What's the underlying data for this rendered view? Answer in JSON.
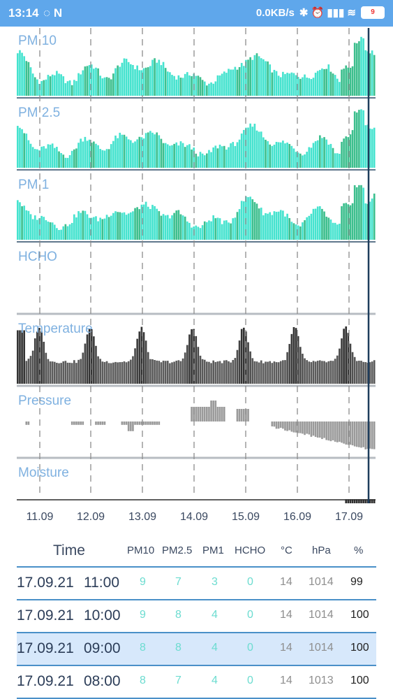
{
  "status_bar": {
    "time": "13:14",
    "left_icons": "◌ N",
    "network_speed": "0.0KB/s",
    "right_icons": "✱ ⏰ ▮▮▮ ≋",
    "battery": "9"
  },
  "panels": [
    {
      "id": "pm10",
      "label": "PM 10"
    },
    {
      "id": "pm25",
      "label": "PM 2.5"
    },
    {
      "id": "pm1",
      "label": "PM 1"
    },
    {
      "id": "hcho",
      "label": "HCHO"
    },
    {
      "id": "temperature",
      "label": "Temperature"
    },
    {
      "id": "pressure",
      "label": "Pressure"
    },
    {
      "id": "moisture",
      "label": "Moisture"
    }
  ],
  "colors": {
    "cyan": "#46e3cf",
    "green": "#3dbf8e",
    "dark_bar": "#2a2a2a",
    "grey_bar": "#9a9a9a",
    "label": "#7fb1e0",
    "divider": "#b7bcc2",
    "cursor": "#1e3d5c"
  },
  "date_labels": [
    "11.09",
    "12.09",
    "13.09",
    "14.09",
    "15.09",
    "16.09",
    "17.09"
  ],
  "table": {
    "headers": {
      "time": "Time",
      "pm10": "PM10",
      "pm25": "PM2.5",
      "pm1": "PM1",
      "hcho": "HCHO",
      "temp": "°C",
      "pressure": "hPa",
      "moisture": "%"
    },
    "rows": [
      {
        "date": "17.09.21",
        "hour": "11:00",
        "pm10": "9",
        "pm25": "7",
        "pm1": "3",
        "hcho": "0",
        "temp": "14",
        "pressure": "1014",
        "moisture": "99",
        "selected": false
      },
      {
        "date": "17.09.21",
        "hour": "10:00",
        "pm10": "9",
        "pm25": "8",
        "pm1": "4",
        "hcho": "0",
        "temp": "14",
        "pressure": "1014",
        "moisture": "100",
        "selected": false
      },
      {
        "date": "17.09.21",
        "hour": "09:00",
        "pm10": "8",
        "pm25": "8",
        "pm1": "4",
        "hcho": "0",
        "temp": "14",
        "pressure": "1014",
        "moisture": "100",
        "selected": true
      },
      {
        "date": "17.09.21",
        "hour": "08:00",
        "pm10": "8",
        "pm25": "7",
        "pm1": "4",
        "hcho": "0",
        "temp": "14",
        "pressure": "1013",
        "moisture": "100",
        "selected": false
      }
    ]
  }
}
